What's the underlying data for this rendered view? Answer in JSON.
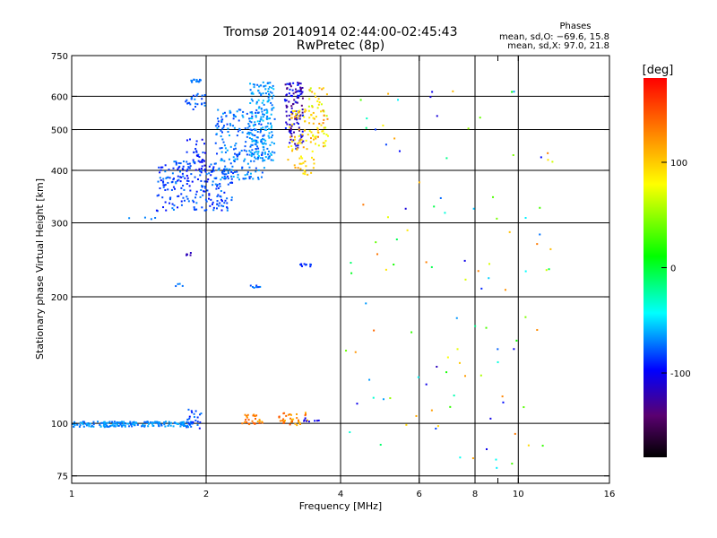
{
  "chart_data": {
    "type": "scatter",
    "title": "Tromsø 20140914 02:44:00-02:45:43",
    "subtitle": "RwPretec (8p)",
    "xlabel": "Frequency [MHz]",
    "ylabel": "Stationary phase Virtual Height [km]",
    "x_scale": "log",
    "y_scale": "log",
    "xlim": [
      1,
      16
    ],
    "ylim": [
      72,
      750
    ],
    "x_ticks": [
      1,
      2,
      4,
      6,
      8,
      9,
      10,
      16
    ],
    "x_tick_labels": [
      "1",
      "2",
      "4",
      "6",
      "8",
      "10",
      "16"
    ],
    "x_tick_label_values": [
      1,
      2,
      4,
      6,
      8,
      10,
      16
    ],
    "x_gridlines": [
      2,
      4,
      6,
      8,
      10
    ],
    "y_tick_values": [
      75,
      100,
      200,
      300,
      400,
      500,
      600,
      750
    ],
    "y_tick_labels": [
      "75",
      "100",
      "200",
      "300",
      "400",
      "500",
      "600",
      "750"
    ],
    "grid": true,
    "stats_header": "Phases",
    "stats": [
      "mean, sd,O: −69.6, 15.8",
      "mean, sd,X:  97.0, 21.8"
    ],
    "colorbar": {
      "label": "[deg]",
      "range": [
        -180,
        180
      ],
      "ticks": [
        100,
        0,
        -100
      ],
      "tick_labels": [
        "100",
        "0",
        "-100"
      ]
    },
    "clusters": [
      {
        "x": [
          1.0,
          1.85
        ],
        "y": [
          98,
          101
        ],
        "phase": [
          -80,
          -60
        ],
        "n": 180
      },
      {
        "x": [
          1.8,
          1.95
        ],
        "y": [
          97,
          108
        ],
        "phase": [
          -100,
          -70
        ],
        "n": 25
      },
      {
        "x": [
          1.55,
          2.3
        ],
        "y": [
          320,
          420
        ],
        "phase": [
          -100,
          -70
        ],
        "n": 220
      },
      {
        "x": [
          1.8,
          2.0
        ],
        "y": [
          380,
          480
        ],
        "phase": [
          -110,
          -80
        ],
        "n": 40
      },
      {
        "x": [
          1.8,
          2.0
        ],
        "y": [
          555,
          610
        ],
        "phase": [
          -90,
          -70
        ],
        "n": 25
      },
      {
        "x": [
          1.85,
          1.95
        ],
        "y": [
          648,
          658
        ],
        "phase": [
          -80,
          -70
        ],
        "n": 14
      },
      {
        "x": [
          2.1,
          2.7
        ],
        "y": [
          380,
          560
        ],
        "phase": [
          -90,
          -60
        ],
        "n": 200
      },
      {
        "x": [
          2.5,
          2.85
        ],
        "y": [
          420,
          650
        ],
        "phase": [
          -80,
          -55
        ],
        "n": 180
      },
      {
        "x": [
          3.0,
          3.3
        ],
        "y": [
          450,
          650
        ],
        "phase": [
          -140,
          -90
        ],
        "n": 120
      },
      {
        "x": [
          3.05,
          3.5
        ],
        "y": [
          390,
          560
        ],
        "phase": [
          80,
          120
        ],
        "n": 80
      },
      {
        "x": [
          3.4,
          3.75
        ],
        "y": [
          450,
          640
        ],
        "phase": [
          60,
          130
        ],
        "n": 60
      },
      {
        "x": [
          2.4,
          2.7
        ],
        "y": [
          99,
          105
        ],
        "phase": [
          110,
          150
        ],
        "n": 30
      },
      {
        "x": [
          2.9,
          3.4
        ],
        "y": [
          99,
          106
        ],
        "phase": [
          100,
          150
        ],
        "n": 35
      },
      {
        "x": [
          3.3,
          3.6
        ],
        "y": [
          100,
          103
        ],
        "phase": [
          -120,
          -100
        ],
        "n": 8
      },
      {
        "x": [
          3.25,
          3.45
        ],
        "y": [
          236,
          240
        ],
        "phase": [
          -100,
          -80
        ],
        "n": 10
      },
      {
        "x": [
          2.45,
          2.65
        ],
        "y": [
          210,
          214
        ],
        "phase": [
          -90,
          -70
        ],
        "n": 8
      },
      {
        "x": [
          1.7,
          1.8
        ],
        "y": [
          212,
          215
        ],
        "phase": [
          -80,
          -70
        ],
        "n": 4
      },
      {
        "x": [
          1.8,
          1.85
        ],
        "y": [
          250,
          260
        ],
        "phase": [
          -140,
          -100
        ],
        "n": 5
      },
      {
        "x": [
          1.3,
          1.55
        ],
        "y": [
          305,
          310
        ],
        "phase": [
          -80,
          -70
        ],
        "n": 4
      },
      {
        "x": [
          4.0,
          12.0
        ],
        "y": [
          78,
          620
        ],
        "phase": [
          -120,
          140
        ],
        "n": 110
      }
    ]
  }
}
